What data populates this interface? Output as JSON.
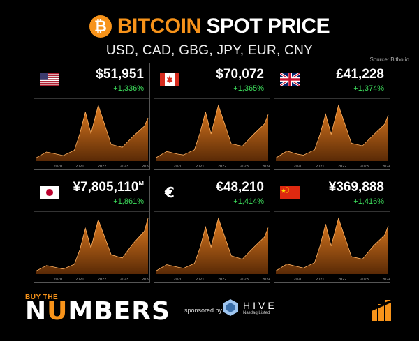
{
  "header": {
    "logo_glyph": "₿",
    "title_highlight": "BITCOIN",
    "title_rest": " SPOT PRICE",
    "subtitle": "USD, CAD, GBG, JPY, EUR, CNY",
    "source": "Source: Bitbo.io"
  },
  "colors": {
    "accent": "#f7931a",
    "positive": "#3ddc5c",
    "area_top": "#e07c20",
    "area_bottom": "#5a2a06",
    "line": "#ffb060"
  },
  "footer": {
    "brand_small": "BUY THE",
    "brand_big_a": "N",
    "brand_big_u": "U",
    "brand_big_b": "MBERS",
    "sponsored_by": "sponsored by",
    "sponsor_name": "HIVE",
    "sponsor_sub": "Nasdaq Listed"
  },
  "chart_data": [
    {
      "type": "area",
      "currency": "USD",
      "flag": "us-flag",
      "price_label": "$51,951",
      "price_suffix": "",
      "change_label": "+1,336%",
      "x": [
        "2019-01",
        "2019-07",
        "2020-01",
        "2020-04",
        "2020-10",
        "2021-01",
        "2021-04",
        "2021-07",
        "2021-11",
        "2022-06",
        "2022-12",
        "2023-06",
        "2023-12",
        "2024-02"
      ],
      "y": [
        3600,
        11000,
        8000,
        6600,
        13000,
        33000,
        59000,
        33000,
        67000,
        20000,
        16500,
        30000,
        42000,
        51951
      ],
      "xticks": [
        "2020",
        "2021",
        "2022",
        "2023",
        "2024"
      ]
    },
    {
      "type": "area",
      "currency": "CAD",
      "flag": "canada-flag",
      "price_label": "$70,072",
      "price_suffix": "",
      "change_label": "+1,365%",
      "x": [
        "2019-01",
        "2019-07",
        "2020-01",
        "2020-04",
        "2020-10",
        "2021-01",
        "2021-04",
        "2021-07",
        "2021-11",
        "2022-06",
        "2022-12",
        "2023-06",
        "2023-12",
        "2024-02"
      ],
      "y": [
        4800,
        14500,
        10500,
        9200,
        17000,
        42000,
        74000,
        41000,
        84000,
        26000,
        22500,
        40000,
        56000,
        70072
      ],
      "xticks": [
        "2020",
        "2021",
        "2022",
        "2023",
        "2024"
      ]
    },
    {
      "type": "area",
      "currency": "GBP",
      "flag": "uk-flag",
      "price_label": "£41,228",
      "price_suffix": "",
      "change_label": "+1,374%",
      "x": [
        "2019-01",
        "2019-07",
        "2020-01",
        "2020-04",
        "2020-10",
        "2021-01",
        "2021-04",
        "2021-07",
        "2021-11",
        "2022-06",
        "2022-12",
        "2023-06",
        "2023-12",
        "2024-02"
      ],
      "y": [
        2800,
        9000,
        6100,
        5300,
        10000,
        24000,
        42000,
        24000,
        50000,
        16000,
        13700,
        23500,
        33000,
        41228
      ],
      "xticks": [
        "2020",
        "2021",
        "2022",
        "2023",
        "2024"
      ]
    },
    {
      "type": "area",
      "currency": "JPY",
      "flag": "japan-flag",
      "price_label": "¥7,805,110",
      "price_suffix": "M",
      "change_label": "+1,861%",
      "x": [
        "2019-01",
        "2019-07",
        "2020-01",
        "2020-04",
        "2020-10",
        "2021-01",
        "2021-04",
        "2021-07",
        "2021-11",
        "2022-06",
        "2022-12",
        "2023-06",
        "2023-12",
        "2024-02"
      ],
      "y": [
        400000,
        1200000,
        870000,
        710000,
        1370000,
        3400000,
        6400000,
        3650000,
        7600000,
        2700000,
        2250000,
        4300000,
        6000000,
        7805110
      ],
      "xticks": [
        "2020",
        "2021",
        "2022",
        "2023",
        "2024"
      ]
    },
    {
      "type": "area",
      "currency": "EUR",
      "flag": "euro-symbol",
      "price_label": "€48,210",
      "price_suffix": "",
      "change_label": "+1,414%",
      "x": [
        "2019-01",
        "2019-07",
        "2020-01",
        "2020-04",
        "2020-10",
        "2021-01",
        "2021-04",
        "2021-07",
        "2021-11",
        "2022-06",
        "2022-12",
        "2023-06",
        "2023-12",
        "2024-02"
      ],
      "y": [
        3200,
        9800,
        7200,
        6000,
        11000,
        27000,
        49000,
        28000,
        58000,
        19000,
        15500,
        27500,
        38500,
        48210
      ],
      "xticks": [
        "2020",
        "2021",
        "2022",
        "2023",
        "2024"
      ]
    },
    {
      "type": "area",
      "currency": "CNY",
      "flag": "china-flag",
      "price_label": "¥369,888",
      "price_suffix": "",
      "change_label": "+1,416%",
      "x": [
        "2019-01",
        "2019-07",
        "2020-01",
        "2020-04",
        "2020-10",
        "2021-01",
        "2021-04",
        "2021-07",
        "2021-11",
        "2022-06",
        "2022-12",
        "2023-06",
        "2023-12",
        "2024-02"
      ],
      "y": [
        24500,
        77000,
        56000,
        46500,
        87000,
        215000,
        383000,
        215000,
        428000,
        134000,
        115000,
        217000,
        298000,
        369888
      ],
      "xticks": [
        "2020",
        "2021",
        "2022",
        "2023",
        "2024"
      ]
    }
  ]
}
